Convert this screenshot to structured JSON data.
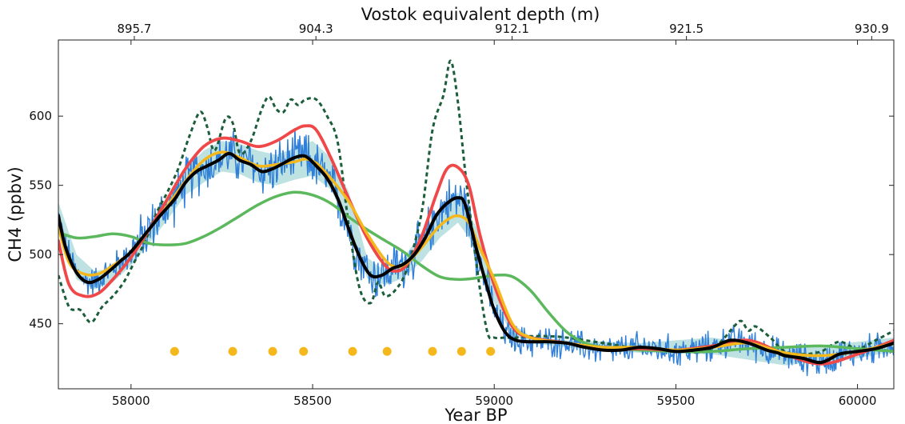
{
  "chart_data": {
    "type": "line",
    "xlabel": "Year BP",
    "ylabel": "CH4 (ppbv)",
    "top_xlabel": "Vostok equivalent depth (m)",
    "xlim": [
      57800,
      60100
    ],
    "ylim": [
      403,
      655
    ],
    "x_ticks": [
      58000,
      58500,
      59000,
      59500,
      60000
    ],
    "x_tick_labels": [
      "58000",
      "58500",
      "59000",
      "59500",
      "60000"
    ],
    "y_ticks": [
      450,
      500,
      550,
      600
    ],
    "y_tick_labels": [
      "450",
      "500",
      "550",
      "600"
    ],
    "top_ticks": [
      57800,
      58300,
      58840,
      59320,
      59830
    ],
    "top_tick_labels": [
      "895.7",
      "904.3",
      "912.1",
      "921.5",
      "930.9"
    ],
    "grid": false,
    "legend": null,
    "raw_color": "#2f7fd8",
    "band_color": "#a8d8d8",
    "series": [
      {
        "style": "dotted",
        "color": "#1b5e3b",
        "x": [
          57800,
          57830,
          57860,
          57890,
          57920,
          57950,
          57980,
          58010,
          58040,
          58070,
          58100,
          58130,
          58160,
          58190,
          58210,
          58230,
          58260,
          58280,
          58300,
          58330,
          58360,
          58380,
          58400,
          58420,
          58440,
          58460,
          58480,
          58510,
          58540,
          58570,
          58600,
          58630,
          58660,
          58680,
          58700,
          58730,
          58760,
          58800,
          58830,
          58860,
          58880,
          58900,
          58920,
          58950,
          58980,
          59000,
          59030,
          59060,
          59100,
          59150,
          59200,
          59300,
          59400,
          59500,
          59580,
          59620,
          59660,
          59680,
          59700,
          59720,
          59760,
          59800,
          59850,
          59900,
          59950,
          60000,
          60050,
          60100
        ],
        "y": [
          485,
          462,
          460,
          451,
          462,
          470,
          480,
          495,
          510,
          530,
          545,
          562,
          585,
          603,
          592,
          575,
          598,
          595,
          573,
          582,
          605,
          614,
          605,
          603,
          612,
          608,
          612,
          612,
          600,
          580,
          520,
          475,
          465,
          480,
          470,
          475,
          490,
          530,
          590,
          615,
          640,
          610,
          560,
          495,
          445,
          440,
          440,
          440,
          441,
          441,
          440,
          436,
          432,
          430,
          430,
          436,
          448,
          452,
          445,
          448,
          440,
          430,
          428,
          430,
          437,
          432,
          438,
          445
        ]
      },
      {
        "style": "solid",
        "color": "#5cb85c",
        "x": [
          57800,
          57850,
          57900,
          57950,
          58000,
          58050,
          58100,
          58150,
          58200,
          58250,
          58300,
          58350,
          58400,
          58450,
          58500,
          58550,
          58600,
          58650,
          58700,
          58750,
          58800,
          58850,
          58900,
          58950,
          59000,
          59050,
          59100,
          59150,
          59200,
          59250,
          59300,
          59350,
          59400,
          59500,
          59600,
          59700,
          59800,
          59900,
          60000,
          60100
        ],
        "y": [
          516,
          512,
          513,
          515,
          513,
          508,
          507,
          508,
          513,
          520,
          528,
          536,
          542,
          545,
          543,
          537,
          527,
          518,
          510,
          502,
          492,
          484,
          482,
          483,
          485,
          484,
          474,
          458,
          444,
          436,
          433,
          432,
          431,
          430,
          430,
          432,
          433,
          434,
          432,
          430
        ]
      },
      {
        "style": "solid",
        "color": "#f04848",
        "x": [
          57800,
          57830,
          57870,
          57910,
          57950,
          58000,
          58050,
          58100,
          58150,
          58200,
          58250,
          58300,
          58350,
          58400,
          58450,
          58480,
          58510,
          58550,
          58600,
          58650,
          58700,
          58730,
          58760,
          58800,
          58840,
          58870,
          58900,
          58930,
          58960,
          59000,
          59050,
          59100,
          59200,
          59300,
          59400,
          59500,
          59600,
          59700,
          59800,
          59900,
          60000,
          60100
        ],
        "y": [
          510,
          478,
          470,
          472,
          482,
          498,
          518,
          540,
          562,
          578,
          584,
          582,
          578,
          582,
          590,
          593,
          590,
          570,
          540,
          512,
          492,
          488,
          493,
          513,
          543,
          562,
          563,
          550,
          515,
          478,
          448,
          440,
          436,
          431,
          432,
          431,
          434,
          438,
          428,
          421,
          428,
          438
        ]
      },
      {
        "style": "solid",
        "color": "#f5b81c",
        "x": [
          57800,
          57830,
          57870,
          57910,
          57950,
          58000,
          58050,
          58100,
          58150,
          58200,
          58250,
          58300,
          58350,
          58400,
          58450,
          58480,
          58510,
          58550,
          58600,
          58650,
          58700,
          58730,
          58760,
          58800,
          58840,
          58870,
          58900,
          58930,
          58960,
          59000,
          59050,
          59100,
          59200,
          59300,
          59400,
          59500,
          59600,
          59700,
          59800,
          59900,
          60000,
          60100
        ],
        "y": [
          520,
          494,
          486,
          486,
          492,
          502,
          518,
          535,
          553,
          568,
          574,
          570,
          564,
          565,
          567,
          569,
          566,
          555,
          538,
          515,
          496,
          491,
          494,
          505,
          518,
          525,
          528,
          523,
          505,
          482,
          450,
          440,
          436,
          433,
          433,
          431,
          433,
          436,
          429,
          427,
          430,
          436
        ]
      },
      {
        "style": "solid",
        "color": "#000000",
        "x": [
          57800,
          57820,
          57850,
          57880,
          57910,
          57940,
          57970,
          58000,
          58040,
          58080,
          58120,
          58150,
          58180,
          58210,
          58240,
          58270,
          58300,
          58330,
          58360,
          58390,
          58420,
          58450,
          58480,
          58510,
          58540,
          58570,
          58600,
          58630,
          58660,
          58690,
          58720,
          58750,
          58780,
          58810,
          58840,
          58870,
          58900,
          58920,
          58950,
          58980,
          59000,
          59030,
          59060,
          59100,
          59150,
          59200,
          59250,
          59300,
          59350,
          59400,
          59450,
          59500,
          59550,
          59600,
          59650,
          59700,
          59750,
          59780,
          59800,
          59850,
          59900,
          59950,
          60000,
          60050,
          60100
        ],
        "y": [
          528,
          505,
          487,
          480,
          482,
          488,
          495,
          502,
          515,
          528,
          540,
          552,
          560,
          564,
          568,
          573,
          568,
          565,
          560,
          562,
          566,
          570,
          571,
          564,
          555,
          540,
          518,
          498,
          485,
          485,
          490,
          493,
          500,
          512,
          528,
          537,
          541,
          536,
          505,
          477,
          460,
          444,
          438,
          437,
          437,
          436,
          433,
          431,
          431,
          433,
          432,
          430,
          431,
          433,
          438,
          436,
          431,
          429,
          427,
          425,
          422,
          428,
          430,
          432,
          436
        ]
      }
    ],
    "band_x": [
      57800,
      57850,
      57900,
      57950,
      58000,
      58050,
      58100,
      58150,
      58200,
      58250,
      58300,
      58350,
      58400,
      58450,
      58500,
      58550,
      58600,
      58650,
      58700,
      58750,
      58800,
      58850,
      58900,
      58950,
      59000,
      59050,
      59100,
      59200,
      59400,
      59600,
      59800,
      60000,
      60100
    ],
    "band_lower": [
      518,
      482,
      475,
      480,
      492,
      508,
      525,
      543,
      552,
      560,
      558,
      552,
      550,
      554,
      557,
      547,
      520,
      483,
      478,
      483,
      495,
      512,
      523,
      505,
      465,
      442,
      436,
      433,
      429,
      428,
      420,
      425,
      430
    ],
    "band_upper": [
      538,
      500,
      488,
      490,
      500,
      520,
      540,
      562,
      575,
      582,
      580,
      575,
      572,
      577,
      582,
      570,
      545,
      498,
      488,
      498,
      515,
      532,
      545,
      520,
      480,
      450,
      441,
      438,
      436,
      440,
      432,
      437,
      440
    ],
    "markers": {
      "color": "#f5b81c",
      "y": 430,
      "x": [
        58120,
        58280,
        58390,
        58475,
        58610,
        58705,
        58830,
        58910,
        58990
      ]
    }
  }
}
